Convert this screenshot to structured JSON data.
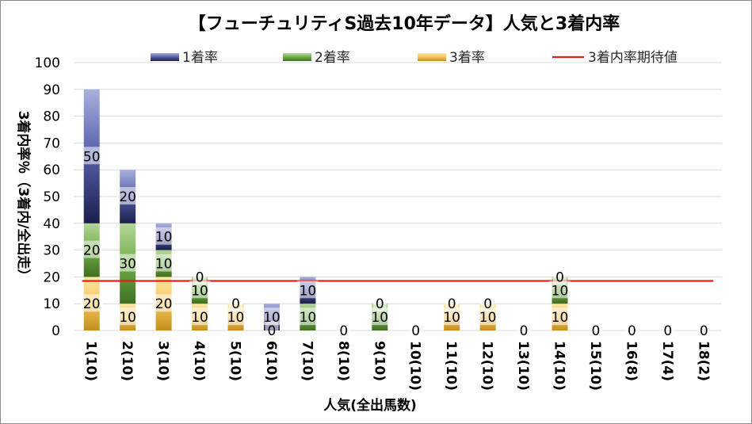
{
  "chart_data": {
    "type": "bar",
    "stacked": true,
    "title": "【フューチュリティS過去10年データ】人気と3着内率",
    "xlabel": "人気(全出馬数)",
    "ylabel": "3着内率％（3着内/全出走）",
    "ylim": [
      0,
      100
    ],
    "yticks": [
      "0",
      "10",
      "20",
      "30",
      "40",
      "50",
      "60",
      "70",
      "80",
      "90",
      "100"
    ],
    "grid": true,
    "legend_position": "top",
    "categories": [
      "1(10)",
      "2(10)",
      "3(10)",
      "4(10)",
      "5(10)",
      "6(10)",
      "7(10)",
      "8(10)",
      "9(10)",
      "10(10)",
      "11(10)",
      "12(10)",
      "13(10)",
      "14(10)",
      "15(10)",
      "16(8)",
      "17(4)",
      "18(2)"
    ],
    "series": [
      {
        "name": "3着率",
        "color": "#f2c45a",
        "values": [
          20,
          10,
          20,
          10,
          10,
          0,
          0,
          0,
          0,
          0,
          10,
          10,
          0,
          10,
          0,
          0,
          0,
          0
        ],
        "labels": [
          "20",
          "10",
          "20",
          "10",
          "10",
          "",
          "",
          "0",
          "",
          "0",
          "10",
          "10",
          "0",
          "10",
          "0",
          "0",
          "0",
          "0"
        ]
      },
      {
        "name": "2着率",
        "color": "#70ad47",
        "values": [
          20,
          30,
          10,
          10,
          0,
          0,
          10,
          0,
          10,
          0,
          0,
          0,
          0,
          10,
          0,
          0,
          0,
          0
        ],
        "labels": [
          "20",
          "30",
          "10",
          "10",
          "0",
          "0",
          "10",
          "",
          "10",
          "",
          "0",
          "0",
          "",
          "10",
          "",
          "",
          "",
          ""
        ]
      },
      {
        "name": "1着率",
        "color": "#5b64b0",
        "values": [
          50,
          20,
          10,
          0,
          0,
          10,
          10,
          0,
          0,
          0,
          0,
          0,
          0,
          0,
          0,
          0,
          0,
          0
        ],
        "labels": [
          "50",
          "20",
          "10",
          "0",
          "",
          "10",
          "10",
          "",
          "0",
          "",
          "",
          "",
          "",
          "0",
          "",
          "",
          "",
          ""
        ]
      }
    ],
    "reference_line": {
      "name": "3着内率期待値",
      "value": 18.5,
      "color": "#e3211c"
    }
  }
}
